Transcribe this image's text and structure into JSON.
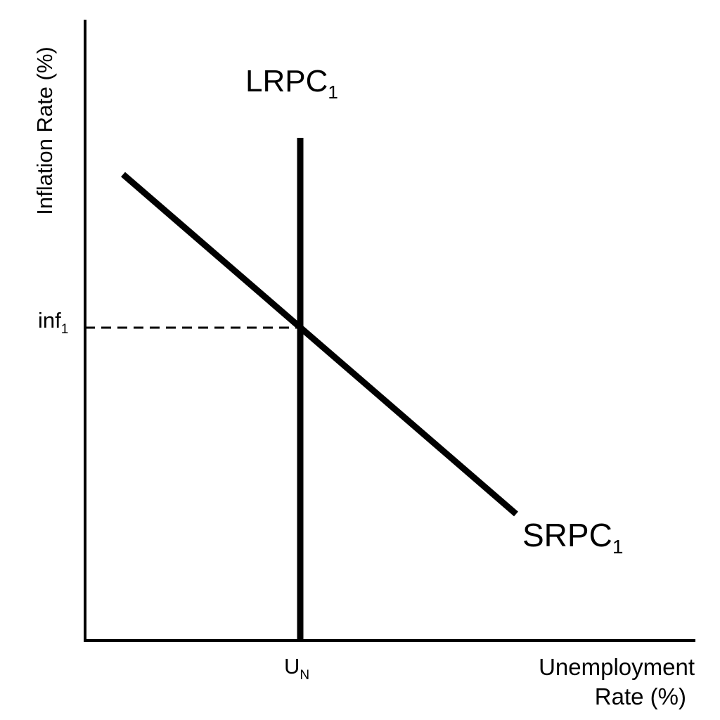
{
  "diagram": {
    "y_axis_label": "Inflation Rate (%)",
    "x_axis_label_line1": "Unemployment",
    "x_axis_label_line2": "Rate (%)",
    "lrpc_label": {
      "main": "LRPC",
      "sub": "1"
    },
    "srpc_label": {
      "main": "SRPC",
      "sub": "1"
    },
    "inflation_tick": {
      "main": "inf",
      "sub": "1"
    },
    "natural_rate_tick": {
      "main": "U",
      "sub": "N"
    },
    "line_color": "#000000",
    "background_color": "#ffffff"
  }
}
